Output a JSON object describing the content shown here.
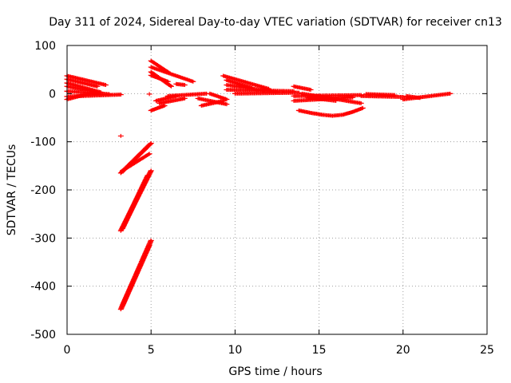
{
  "chart_data": {
    "type": "scatter",
    "title": "Day 311 of 2024, Sidereal Day-to-day VTEC variation (SDTVAR) for receiver cn13",
    "xlabel": "GPS time / hours",
    "ylabel": "SDTVAR / TECUs",
    "xlim": [
      0,
      25
    ],
    "ylim": [
      -500,
      100
    ],
    "x_ticks": [
      0,
      5,
      10,
      15,
      20,
      25
    ],
    "x_tick_labels": [
      "0",
      "5",
      "10",
      "15",
      "20",
      "25"
    ],
    "y_ticks": [
      -500,
      -400,
      -300,
      -200,
      -100,
      0,
      100
    ],
    "y_tick_labels": [
      "-500",
      "-400",
      "-300",
      "-200",
      "-100",
      "0",
      "100"
    ],
    "grid": true,
    "marker": "+",
    "color": "#ff0000",
    "segments": [
      {
        "x0": 0.0,
        "y0": 37,
        "x1": 2.3,
        "y1": 18
      },
      {
        "x0": 0.0,
        "y0": 30,
        "x1": 1.8,
        "y1": 15
      },
      {
        "x0": 0.0,
        "y0": 22,
        "x1": 2.0,
        "y1": 3
      },
      {
        "x0": 0.0,
        "y0": 15,
        "x1": 1.5,
        "y1": 5
      },
      {
        "x0": 0.0,
        "y0": -12,
        "x1": 1.5,
        "y1": 2
      },
      {
        "x0": 0.0,
        "y0": -6,
        "x1": 3.2,
        "y1": -2
      },
      {
        "x0": 0.0,
        "y0": 5,
        "x1": 2.5,
        "y1": -1
      },
      {
        "x0": 3.2,
        "y0": -165,
        "x1": 5.0,
        "y1": -103
      },
      {
        "x0": 3.3,
        "y0": -160,
        "x1": 4.9,
        "y1": -125
      },
      {
        "x0": 3.2,
        "y0": -285,
        "x1": 5.0,
        "y1": -160
      },
      {
        "x0": 3.3,
        "y0": -280,
        "x1": 4.8,
        "y1": -170
      },
      {
        "x0": 3.2,
        "y0": -448,
        "x1": 5.0,
        "y1": -305
      },
      {
        "x0": 3.3,
        "y0": -440,
        "x1": 4.9,
        "y1": -315
      },
      {
        "x0": 5.0,
        "y0": 68,
        "x1": 6.0,
        "y1": 45
      },
      {
        "x0": 5.0,
        "y0": 55,
        "x1": 7.5,
        "y1": 25
      },
      {
        "x0": 5.0,
        "y0": 45,
        "x1": 6.2,
        "y1": 15
      },
      {
        "x0": 5.0,
        "y0": 38,
        "x1": 6.0,
        "y1": 25
      },
      {
        "x0": 5.0,
        "y0": -35,
        "x1": 5.8,
        "y1": -25
      },
      {
        "x0": 5.3,
        "y0": -15,
        "x1": 6.5,
        "y1": -5
      },
      {
        "x0": 5.5,
        "y0": -20,
        "x1": 7.0,
        "y1": -10
      },
      {
        "x0": 6.0,
        "y0": -5,
        "x1": 8.3,
        "y1": 0
      },
      {
        "x0": 6.5,
        "y0": 20,
        "x1": 7.0,
        "y1": 18
      },
      {
        "x0": 7.8,
        "y0": -10,
        "x1": 9.5,
        "y1": -22
      },
      {
        "x0": 8.0,
        "y0": -25,
        "x1": 9.3,
        "y1": -15
      },
      {
        "x0": 8.5,
        "y0": 0,
        "x1": 9.5,
        "y1": -12
      },
      {
        "x0": 9.3,
        "y0": 37,
        "x1": 12.0,
        "y1": 10
      },
      {
        "x0": 9.5,
        "y0": 28,
        "x1": 11.0,
        "y1": 12
      },
      {
        "x0": 9.5,
        "y0": 18,
        "x1": 12.5,
        "y1": 3
      },
      {
        "x0": 9.5,
        "y0": 8,
        "x1": 13.5,
        "y1": 5
      },
      {
        "x0": 10.0,
        "y0": 0,
        "x1": 13.8,
        "y1": 2
      },
      {
        "x0": 13.5,
        "y0": 15,
        "x1": 14.5,
        "y1": 8
      },
      {
        "x0": 13.5,
        "y0": -5,
        "x1": 17.5,
        "y1": -3
      },
      {
        "x0": 13.5,
        "y0": -15,
        "x1": 17.0,
        "y1": -8
      },
      {
        "x0": 14.0,
        "y0": 0,
        "x1": 17.5,
        "y1": -20
      },
      {
        "x0": 14.3,
        "y0": -8,
        "x1": 16.0,
        "y1": -15
      },
      {
        "x0": 17.5,
        "y0": -5,
        "x1": 20.0,
        "y1": -7
      },
      {
        "x0": 17.8,
        "y0": -1,
        "x1": 19.5,
        "y1": -3
      },
      {
        "x0": 20.0,
        "y0": -12,
        "x1": 22.8,
        "y1": 0
      },
      {
        "x0": 20.2,
        "y0": -5,
        "x1": 21.0,
        "y1": -9
      }
    ],
    "curves": [
      {
        "x": [
          13.8,
          14.5,
          15.2,
          15.8,
          16.4,
          17.0,
          17.6
        ],
        "y": [
          -35,
          -40,
          -44,
          -46,
          -44,
          -38,
          -30
        ]
      }
    ],
    "isolated_points": [
      {
        "x": 3.2,
        "y": -88
      },
      {
        "x": 4.9,
        "y": -1
      }
    ]
  }
}
